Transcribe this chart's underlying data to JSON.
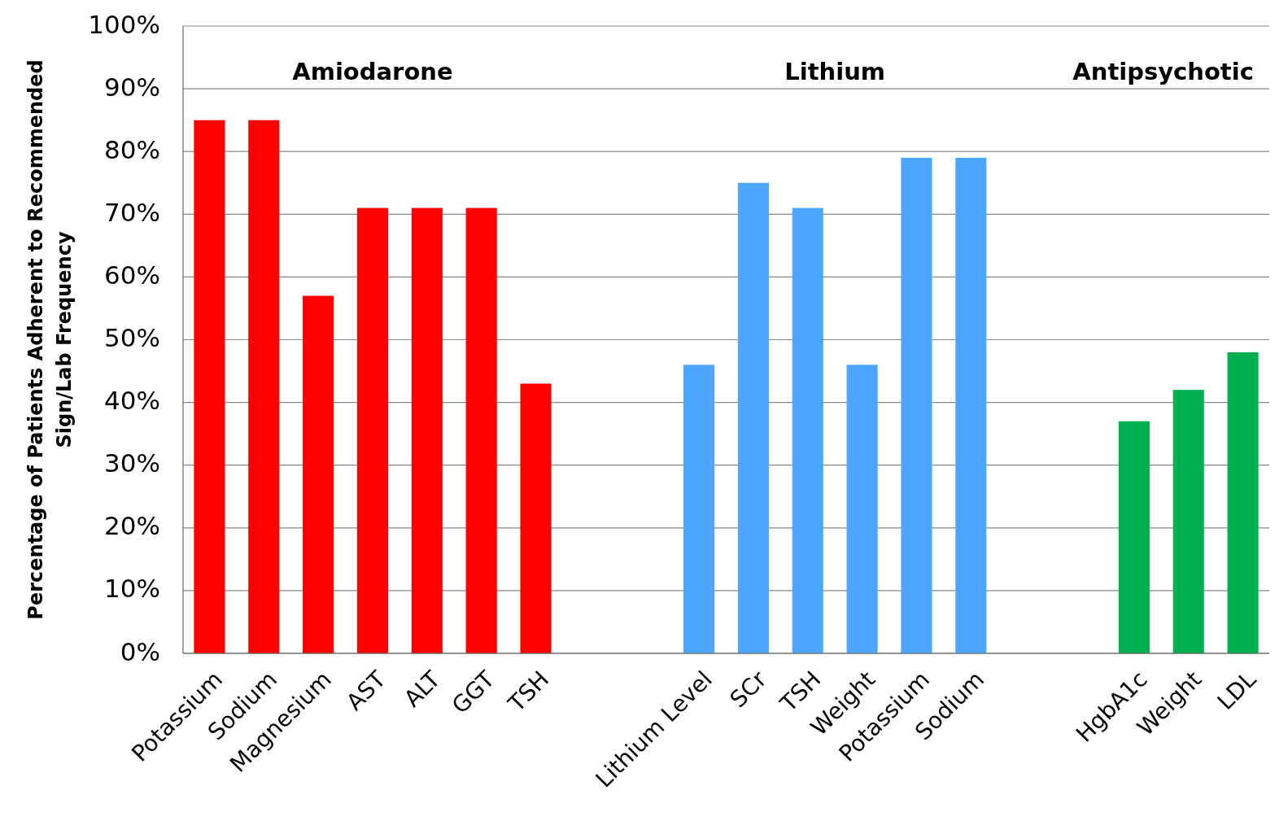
{
  "chart_data": {
    "type": "bar",
    "ylabel": "Percentage of Patients Adherent to Recommended\nSign/Lab Frequency",
    "categories": [
      "Potassium",
      "Sodium",
      "Magnesium",
      "AST",
      "ALT",
      "GGT",
      "TSH",
      null,
      null,
      "Lithium Level",
      "SCr",
      "TSH",
      "Weight",
      "Potassium",
      "Sodium",
      null,
      null,
      "HgbA1c",
      "Weight",
      "LDL"
    ],
    "series": [
      {
        "color": "#ff0000",
        "values": [
          85,
          85,
          57,
          71,
          71,
          71,
          43,
          null,
          null,
          null,
          null,
          null,
          null,
          null,
          null,
          null,
          null,
          null,
          null,
          null
        ]
      },
      {
        "color": "#4da6ff",
        "values": [
          null,
          null,
          null,
          null,
          null,
          null,
          null,
          null,
          null,
          46,
          75,
          71,
          46,
          79,
          79,
          null,
          null,
          null,
          null,
          null
        ]
      },
      {
        "color": "#00b050",
        "values": [
          null,
          null,
          null,
          null,
          null,
          null,
          null,
          null,
          null,
          null,
          null,
          null,
          null,
          null,
          null,
          null,
          null,
          37,
          42,
          48
        ]
      }
    ],
    "ylim": [
      0,
      100
    ],
    "yticks": [
      {
        "value": 0,
        "label": "0%"
      },
      {
        "value": 10,
        "label": "10%"
      },
      {
        "value": 20,
        "label": "20%"
      },
      {
        "value": 30,
        "label": "30%"
      },
      {
        "value": 40,
        "label": "40%"
      },
      {
        "value": 50,
        "label": "50%"
      },
      {
        "value": 60,
        "label": "60%"
      },
      {
        "value": 70,
        "label": "70%"
      },
      {
        "value": 80,
        "label": "80%"
      },
      {
        "value": 90,
        "label": "90%"
      },
      {
        "value": 100,
        "label": "100%"
      }
    ],
    "annotations": [
      "Amiodarone",
      "Lithium",
      "Antipsychotic"
    ],
    "grid": "y"
  }
}
